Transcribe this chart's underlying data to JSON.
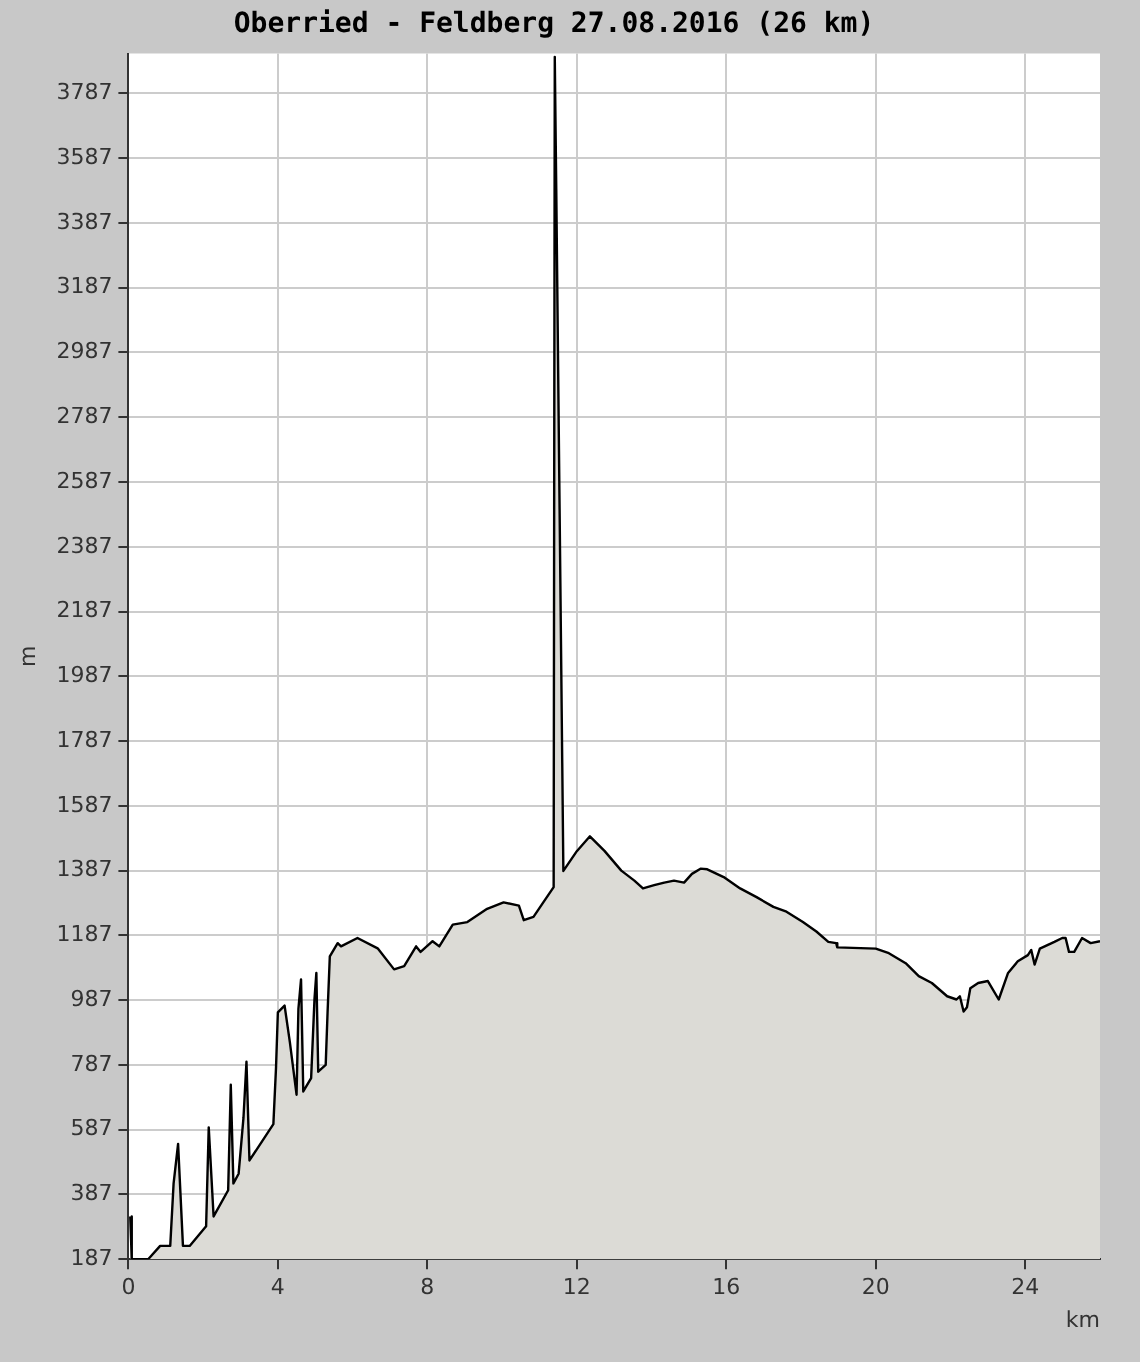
{
  "chart_data": {
    "type": "area",
    "title": "Oberried - Feldberg 27.08.2016 (26 km)",
    "xlabel": "km",
    "ylabel": "m",
    "xlim": [
      0,
      26
    ],
    "xticks": [
      0,
      4,
      8,
      12,
      16,
      20,
      24
    ],
    "ylim": [
      187,
      3910
    ],
    "yticks": [
      187,
      387,
      587,
      787,
      987,
      1187,
      1387,
      1587,
      1787,
      1987,
      2187,
      2387,
      2587,
      2787,
      2987,
      3187,
      3387,
      3587,
      3787
    ],
    "grid": true,
    "legend": false,
    "marker": "none",
    "series": [
      {
        "color": "#000000",
        "x": [
          0.05,
          0.09,
          0.27,
          0.53,
          0.85,
          1.12,
          1.21,
          1.33,
          1.46,
          1.64,
          2.08,
          2.15,
          2.28,
          2.67,
          2.74,
          2.81,
          2.95,
          3.08,
          3.16,
          3.24,
          3.88,
          3.95,
          4.0,
          4.18,
          4.32,
          4.5,
          4.55,
          4.62,
          4.68,
          4.89,
          4.98,
          5.03,
          5.08,
          5.28,
          5.33,
          5.39,
          5.6,
          5.69,
          6.13,
          6.67,
          7.11,
          7.38,
          7.7,
          7.82,
          8.14,
          8.32,
          8.68,
          9.07,
          9.6,
          10.04,
          10.45,
          10.58,
          10.84,
          11.08,
          11.38,
          11.41,
          11.45,
          11.48,
          11.64,
          12.0,
          12.35,
          12.74,
          13.19,
          13.54,
          13.77,
          14.07,
          14.34,
          14.6,
          14.87,
          15.08,
          15.31,
          15.49,
          15.93,
          16.37,
          16.81,
          17.26,
          17.61,
          18.05,
          18.41,
          18.73,
          18.94,
          18.97,
          20.0,
          20.35,
          20.8,
          21.15,
          21.5,
          21.91,
          22.16,
          22.25,
          22.35,
          22.44,
          22.53,
          22.74,
          23.0,
          23.29,
          23.54,
          23.8,
          24.07,
          24.16,
          24.25,
          24.39,
          24.78,
          24.99,
          25.08,
          25.17,
          25.31,
          25.52,
          25.75,
          26.0
        ],
        "values": [
          319,
          187,
          187,
          187,
          228,
          228,
          421,
          543,
          228,
          228,
          289,
          594,
          319,
          400,
          726,
          421,
          451,
          624,
          797,
          492,
          604,
          777,
          949,
          970,
          858,
          695,
          960,
          1051,
          705,
          746,
          990,
          1071,
          766,
          787,
          949,
          1122,
          1163,
          1153,
          1179,
          1147,
          1082,
          1092,
          1153,
          1136,
          1169,
          1153,
          1220,
          1228,
          1269,
          1289,
          1279,
          1234,
          1244,
          1285,
          1336,
          3900,
          3490,
          3490,
          1386,
          1447,
          1493,
          1448,
          1387,
          1356,
          1332,
          1342,
          1350,
          1356,
          1350,
          1377,
          1393,
          1391,
          1367,
          1332,
          1305,
          1275,
          1260,
          1228,
          1199,
          1167,
          1163,
          1150,
          1146,
          1132,
          1101,
          1061,
          1040,
          999,
          989,
          999,
          952,
          965,
          1024,
          1040,
          1046,
          989,
          1071,
          1107,
          1126,
          1142,
          1097,
          1146,
          1167,
          1179,
          1179,
          1136,
          1136,
          1179,
          1163,
          1169
        ]
      }
    ]
  }
}
